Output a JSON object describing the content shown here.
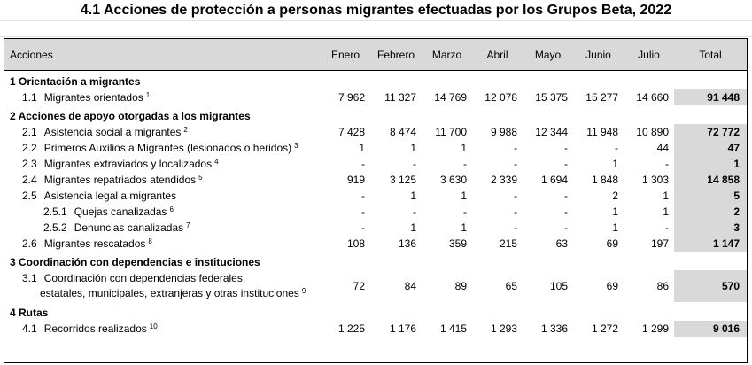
{
  "title": "4.1 Acciones de protección a personas migrantes efectuadas por los Grupos Beta, 2022",
  "headers": {
    "acciones": "Acciones",
    "months": [
      "Enero",
      "Febrero",
      "Marzo",
      "Abril",
      "Mayo",
      "Junio",
      "Julio"
    ],
    "total": "Total"
  },
  "sections": {
    "s1": {
      "label": "1 Orientación a migrantes",
      "rows": [
        {
          "code": "1.1",
          "label": "Migrantes orientados",
          "note": "1",
          "values": [
            "7 962",
            "11 327",
            "14 769",
            "12 078",
            "15 375",
            "15 277",
            "14 660"
          ],
          "total": "91 448"
        }
      ]
    },
    "s2": {
      "label": "2 Acciones de apoyo otorgadas a los migrantes",
      "rows": [
        {
          "code": "2.1",
          "label": "Asistencia social a migrantes",
          "note": "2",
          "values": [
            "7 428",
            "8 474",
            "11 700",
            "9 988",
            "12 344",
            "11 948",
            "10 890"
          ],
          "total": "72 772"
        },
        {
          "code": "2.2",
          "label": "Primeros Auxilios a Migrantes (lesionados o heridos)",
          "note": "3",
          "values": [
            "1",
            "1",
            "1",
            "-",
            "-",
            "-",
            "44"
          ],
          "total": "47"
        },
        {
          "code": "2.3",
          "label": "Migrantes extraviados y localizados",
          "note": "4",
          "values": [
            "-",
            "-",
            "-",
            "-",
            "-",
            "1",
            "-"
          ],
          "total": "1"
        },
        {
          "code": "2.4",
          "label": "Migrantes repatriados atendidos",
          "note": "5",
          "values": [
            "919",
            "3 125",
            "3 630",
            "2 339",
            "1 694",
            "1 848",
            "1 303"
          ],
          "total": "14 858"
        },
        {
          "code": "2.5",
          "label": "Asistencia  legal a migrantes",
          "note": "",
          "values": [
            "-",
            "1",
            "1",
            "-",
            "-",
            "2",
            "1"
          ],
          "total": "5"
        },
        {
          "code": "2.5.1",
          "label": "Quejas canalizadas",
          "note": "6",
          "values": [
            "-",
            "-",
            "-",
            "-",
            "-",
            "1",
            "1"
          ],
          "total": "2"
        },
        {
          "code": "2.5.2",
          "label": "Denuncias canalizadas",
          "note": "7",
          "values": [
            "-",
            "1",
            "1",
            "-",
            "-",
            "1",
            "-"
          ],
          "total": "3"
        },
        {
          "code": "2.6",
          "label": "Migrantes rescatados",
          "note": "8",
          "values": [
            "108",
            "136",
            "359",
            "215",
            "63",
            "69",
            "197"
          ],
          "total": "1 147"
        }
      ]
    },
    "s3": {
      "label": "3 Coordinación con dependencias e instituciones",
      "rows": [
        {
          "code": "3.1",
          "label": "Coordinación con dependencias federales,",
          "label2": "estatales, municipales, extranjeras y otras instituciones",
          "note": "9",
          "values": [
            "72",
            "84",
            "89",
            "65",
            "105",
            "69",
            "86"
          ],
          "total": "570"
        }
      ]
    },
    "s4": {
      "label": "4 Rutas",
      "rows": [
        {
          "code": "4.1",
          "label": "Recorridos realizados",
          "note": "10",
          "values": [
            "1 225",
            "1 176",
            "1 415",
            "1 293",
            "1 336",
            "1 272",
            "1 299"
          ],
          "total": "9 016"
        }
      ]
    }
  }
}
